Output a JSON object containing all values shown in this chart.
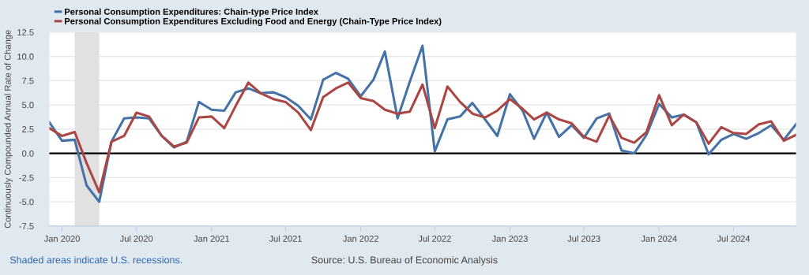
{
  "chart_data": {
    "type": "line",
    "ylabel": "Continuously Compounded Annual Rate of Change",
    "x": [
      "2019-12",
      "2020-01",
      "2020-02",
      "2020-03",
      "2020-04",
      "2020-05",
      "2020-06",
      "2020-07",
      "2020-08",
      "2020-09",
      "2020-10",
      "2020-11",
      "2020-12",
      "2021-01",
      "2021-02",
      "2021-03",
      "2021-04",
      "2021-05",
      "2021-06",
      "2021-07",
      "2021-08",
      "2021-09",
      "2021-10",
      "2021-11",
      "2021-12",
      "2022-01",
      "2022-02",
      "2022-03",
      "2022-04",
      "2022-05",
      "2022-06",
      "2022-07",
      "2022-08",
      "2022-09",
      "2022-10",
      "2022-11",
      "2022-12",
      "2023-01",
      "2023-02",
      "2023-03",
      "2023-04",
      "2023-05",
      "2023-06",
      "2023-07",
      "2023-08",
      "2023-09",
      "2023-10",
      "2023-11",
      "2023-12",
      "2024-01",
      "2024-02",
      "2024-03",
      "2024-04",
      "2024-05",
      "2024-06",
      "2024-07",
      "2024-08",
      "2024-09",
      "2024-10",
      "2024-11",
      "2024-12"
    ],
    "series": [
      {
        "name": "Personal Consumption Expenditures: Chain-type Price Index",
        "color": "#4572a7",
        "values": [
          3.2,
          1.3,
          1.4,
          -3.3,
          -5.0,
          1.2,
          3.6,
          3.7,
          3.6,
          1.8,
          0.6,
          1.2,
          5.3,
          4.5,
          4.4,
          6.3,
          6.7,
          6.2,
          6.3,
          5.8,
          4.9,
          3.5,
          7.6,
          8.3,
          7.7,
          5.9,
          7.6,
          10.5,
          3.6,
          7.4,
          11.1,
          0.2,
          3.5,
          3.8,
          5.2,
          3.5,
          1.8,
          6.1,
          4.4,
          1.5,
          4.2,
          1.7,
          2.9,
          1.6,
          3.6,
          4.1,
          0.3,
          0.0,
          1.9,
          5.1,
          3.7,
          4.0,
          3.2,
          -0.1,
          1.4,
          2.0,
          1.5,
          2.1,
          2.9,
          1.4,
          3.0
        ]
      },
      {
        "name": "Personal Consumption Expenditures Excluding Food and Energy (Chain-Type Price Index)",
        "color": "#aa4643",
        "values": [
          2.6,
          1.8,
          2.2,
          -1.0,
          -4.0,
          1.2,
          1.8,
          4.2,
          3.8,
          1.8,
          0.7,
          1.1,
          3.7,
          3.8,
          2.6,
          4.9,
          7.3,
          6.2,
          5.6,
          5.3,
          4.2,
          2.4,
          5.8,
          6.7,
          7.3,
          5.7,
          5.4,
          4.5,
          4.1,
          4.3,
          7.1,
          2.6,
          6.9,
          5.3,
          4.1,
          3.7,
          4.4,
          5.6,
          4.6,
          3.5,
          4.2,
          3.5,
          3.1,
          1.7,
          1.2,
          3.9,
          1.6,
          1.1,
          2.2,
          6.0,
          2.9,
          4.0,
          3.2,
          1.0,
          2.7,
          2.1,
          2.0,
          3.0,
          3.3,
          1.3,
          1.9
        ]
      }
    ],
    "xlim": [
      "2019-12",
      "2024-12"
    ],
    "xticks": [
      {
        "value": "2020-01",
        "label": "Jan 2020"
      },
      {
        "value": "2020-07",
        "label": "Jul 2020"
      },
      {
        "value": "2021-01",
        "label": "Jan 2021"
      },
      {
        "value": "2021-07",
        "label": "Jul 2021"
      },
      {
        "value": "2022-01",
        "label": "Jan 2022"
      },
      {
        "value": "2022-07",
        "label": "Jul 2022"
      },
      {
        "value": "2023-01",
        "label": "Jan 2023"
      },
      {
        "value": "2023-07",
        "label": "Jul 2023"
      },
      {
        "value": "2024-01",
        "label": "Jan 2024"
      },
      {
        "value": "2024-07",
        "label": "Jul 2024"
      }
    ],
    "ylim": [
      -7.5,
      12.5
    ],
    "yticks": [
      {
        "value": -7.5,
        "label": "-7.5"
      },
      {
        "value": -5,
        "label": "-5.0"
      },
      {
        "value": -2.5,
        "label": "-2.5"
      },
      {
        "value": 0,
        "label": "0.0"
      },
      {
        "value": 2.5,
        "label": "2.5"
      },
      {
        "value": 5,
        "label": "5.0"
      },
      {
        "value": 7.5,
        "label": "7.5"
      },
      {
        "value": 10,
        "label": "10.0"
      },
      {
        "value": 12.5,
        "label": "12.5"
      }
    ],
    "ref_lines": [
      {
        "axis": "y",
        "value": 0,
        "color": "#000000"
      }
    ],
    "bands": [
      {
        "axis": "x",
        "from": "2020-02",
        "to": "2020-04",
        "color": "#e1e1e1"
      }
    ],
    "grid": "y",
    "legend": "top left",
    "marker": "none",
    "line_style": "solid",
    "annotations": [
      "Shaded areas indicate U.S. recessions.",
      "Source: U.S. Bureau of Economic Analysis"
    ]
  }
}
